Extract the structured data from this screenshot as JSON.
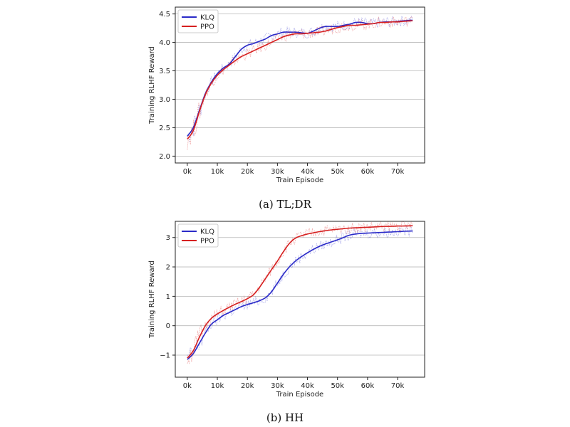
{
  "chart_data": [
    {
      "type": "line",
      "caption": "(a) TL;DR",
      "xlabel": "Train Episode",
      "ylabel": "Training RLHF Reward",
      "xlim": [
        -4000,
        79000
      ],
      "ylim": [
        1.88,
        4.62
      ],
      "x_ticks": [
        0,
        10000,
        20000,
        30000,
        40000,
        50000,
        60000,
        70000
      ],
      "x_tick_labels": [
        "0k",
        "10k",
        "20k",
        "30k",
        "40k",
        "50k",
        "60k",
        "70k"
      ],
      "y_ticks": [
        2.0,
        2.5,
        3.0,
        3.5,
        4.0,
        4.5
      ],
      "y_tick_labels": [
        "2.0",
        "2.5",
        "3.0",
        "3.5",
        "4.0",
        "4.5"
      ],
      "grid": "horizontal",
      "legend": "top-left",
      "series": [
        {
          "name": "KLQ",
          "color": "#2a2ac8",
          "x": [
            0,
            2000,
            4000,
            6000,
            8000,
            10000,
            12000,
            14000,
            16000,
            18000,
            20000,
            22000,
            24000,
            26000,
            28000,
            30000,
            32000,
            34000,
            36000,
            38000,
            40000,
            42000,
            44000,
            46000,
            48000,
            50000,
            52000,
            54000,
            56000,
            58000,
            60000,
            62000,
            64000,
            66000,
            68000,
            70000,
            72000,
            75000
          ],
          "values": [
            2.35,
            2.5,
            2.8,
            3.1,
            3.3,
            3.45,
            3.55,
            3.62,
            3.75,
            3.88,
            3.95,
            3.98,
            4.02,
            4.06,
            4.12,
            4.15,
            4.18,
            4.18,
            4.18,
            4.17,
            4.16,
            4.2,
            4.25,
            4.28,
            4.28,
            4.28,
            4.3,
            4.32,
            4.35,
            4.35,
            4.33,
            4.33,
            4.35,
            4.36,
            4.36,
            4.37,
            4.38,
            4.39
          ]
        },
        {
          "name": "PPO",
          "color": "#d62020",
          "x": [
            0,
            2000,
            4000,
            6000,
            8000,
            10000,
            12000,
            14000,
            16000,
            18000,
            20000,
            22000,
            24000,
            26000,
            28000,
            30000,
            32000,
            34000,
            36000,
            38000,
            40000,
            42000,
            44000,
            46000,
            48000,
            50000,
            52000,
            54000,
            56000,
            58000,
            60000,
            62000,
            64000,
            66000,
            68000,
            70000,
            72000,
            75000
          ],
          "values": [
            2.3,
            2.45,
            2.78,
            3.08,
            3.28,
            3.42,
            3.52,
            3.6,
            3.68,
            3.75,
            3.8,
            3.85,
            3.9,
            3.95,
            4.0,
            4.05,
            4.1,
            4.13,
            4.15,
            4.15,
            4.16,
            4.17,
            4.18,
            4.2,
            4.23,
            4.26,
            4.28,
            4.3,
            4.3,
            4.31,
            4.32,
            4.33,
            4.35,
            4.35,
            4.36,
            4.36,
            4.37,
            4.38
          ]
        }
      ]
    },
    {
      "type": "line",
      "caption": "(b) HH",
      "xlabel": "Train Episode",
      "ylabel": "Training RLHF Reward",
      "xlim": [
        -4000,
        79000
      ],
      "ylim": [
        -1.75,
        3.55
      ],
      "x_ticks": [
        0,
        10000,
        20000,
        30000,
        40000,
        50000,
        60000,
        70000
      ],
      "x_tick_labels": [
        "0k",
        "10k",
        "20k",
        "30k",
        "40k",
        "50k",
        "60k",
        "70k"
      ],
      "y_ticks": [
        -1,
        0,
        1,
        2,
        3
      ],
      "y_tick_labels": [
        "−1",
        "0",
        "1",
        "2",
        "3"
      ],
      "grid": "horizontal",
      "legend": "top-left",
      "series": [
        {
          "name": "KLQ",
          "color": "#2a2ac8",
          "x": [
            0,
            2000,
            4000,
            6000,
            8000,
            10000,
            12000,
            14000,
            16000,
            18000,
            20000,
            22000,
            24000,
            26000,
            28000,
            30000,
            32000,
            34000,
            36000,
            38000,
            40000,
            42000,
            44000,
            46000,
            48000,
            50000,
            52000,
            54000,
            56000,
            58000,
            60000,
            62000,
            64000,
            66000,
            68000,
            70000,
            72000,
            75000
          ],
          "values": [
            -1.15,
            -0.95,
            -0.6,
            -0.25,
            0.05,
            0.2,
            0.35,
            0.45,
            0.55,
            0.65,
            0.72,
            0.78,
            0.85,
            0.95,
            1.15,
            1.45,
            1.75,
            2.0,
            2.2,
            2.35,
            2.48,
            2.6,
            2.7,
            2.78,
            2.85,
            2.92,
            3.0,
            3.08,
            3.12,
            3.14,
            3.15,
            3.16,
            3.17,
            3.18,
            3.19,
            3.2,
            3.21,
            3.22
          ]
        },
        {
          "name": "PPO",
          "color": "#d62020",
          "x": [
            0,
            2000,
            4000,
            6000,
            8000,
            10000,
            12000,
            14000,
            16000,
            18000,
            20000,
            22000,
            24000,
            26000,
            28000,
            30000,
            32000,
            34000,
            36000,
            38000,
            40000,
            42000,
            44000,
            46000,
            48000,
            50000,
            52000,
            54000,
            56000,
            58000,
            60000,
            62000,
            64000,
            66000,
            68000,
            70000,
            72000,
            75000
          ],
          "values": [
            -1.1,
            -0.85,
            -0.4,
            0.0,
            0.25,
            0.4,
            0.52,
            0.63,
            0.73,
            0.82,
            0.92,
            1.05,
            1.3,
            1.6,
            1.9,
            2.2,
            2.52,
            2.8,
            2.98,
            3.06,
            3.12,
            3.16,
            3.2,
            3.23,
            3.26,
            3.28,
            3.3,
            3.32,
            3.33,
            3.34,
            3.35,
            3.36,
            3.37,
            3.38,
            3.38,
            3.39,
            3.39,
            3.4
          ]
        }
      ]
    }
  ]
}
